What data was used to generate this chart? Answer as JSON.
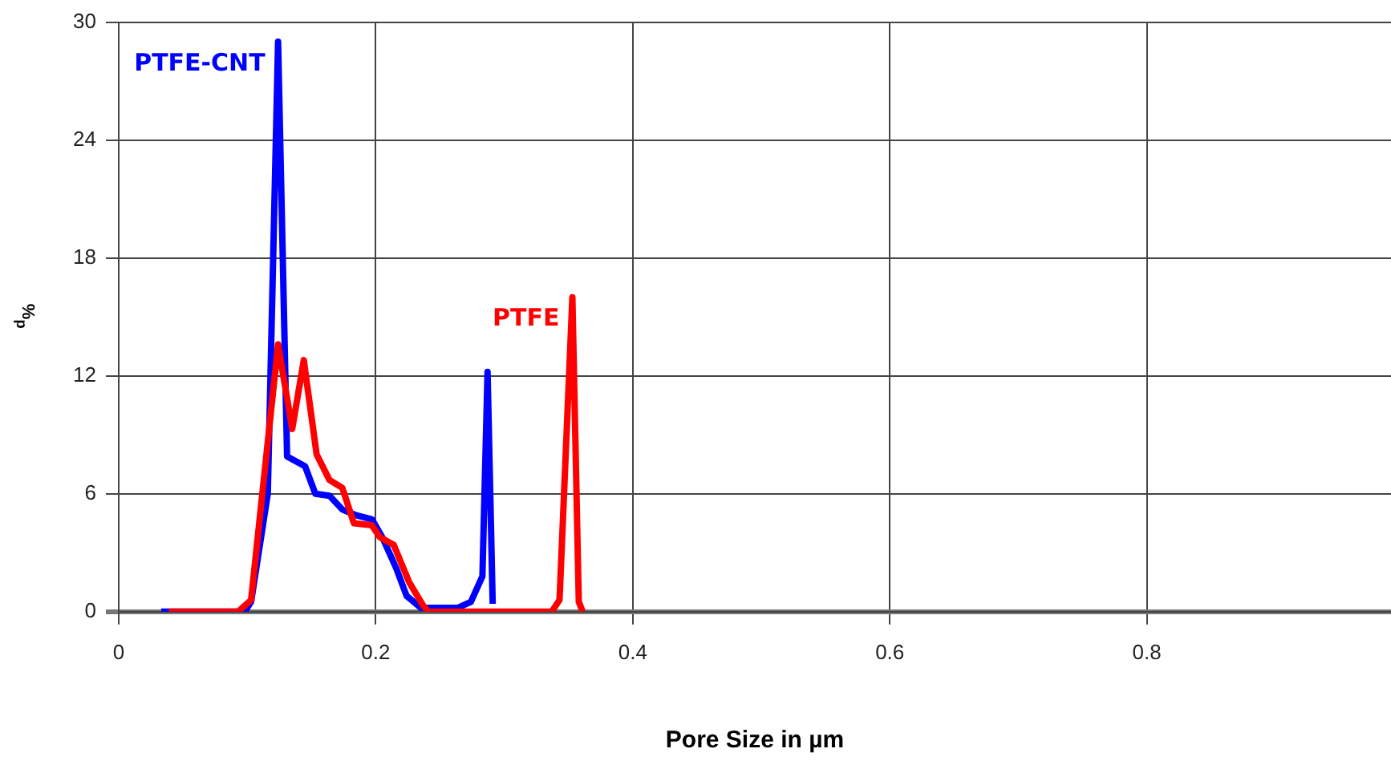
{
  "chart_data": {
    "type": "line",
    "xlabel": "Pore Size in µm",
    "ylabel": "%$_{p}$",
    "xlim": [
      0,
      0.99
    ],
    "xticks": [
      0,
      0.2,
      0.4,
      0.6,
      0.8
    ],
    "ylim": [
      0,
      30
    ],
    "yticks": [
      0,
      6,
      12,
      18,
      24,
      30
    ],
    "grid": true,
    "legend": false,
    "marker": "none",
    "line_style": "solid",
    "series": [
      {
        "name": "PTFE-CNT",
        "color": "#0000ff",
        "x": [
          0.033,
          0.098,
          0.103,
          0.116,
          0.124,
          0.131,
          0.145,
          0.153,
          0.164,
          0.174,
          0.185,
          0.197,
          0.205,
          0.216,
          0.224,
          0.235,
          0.25,
          0.264,
          0.274,
          0.283,
          0.287,
          0.291
        ],
        "values": [
          0,
          0,
          0.5,
          6,
          29,
          7.9,
          7.4,
          6,
          5.9,
          5.2,
          4.9,
          4.7,
          3.8,
          2.2,
          0.8,
          0.2,
          0.2,
          0.2,
          0.5,
          1.8,
          12.2,
          0.4
        ]
      },
      {
        "name": "PTFE",
        "color": "#ff0000",
        "x": [
          0.039,
          0.06,
          0.08,
          0.093,
          0.103,
          0.124,
          0.135,
          0.144,
          0.154,
          0.164,
          0.174,
          0.183,
          0.197,
          0.203,
          0.214,
          0.226,
          0.237,
          0.241,
          0.27,
          0.3,
          0.337,
          0.343,
          0.353,
          0.358,
          0.361
        ],
        "values": [
          0,
          0,
          0,
          0,
          0.6,
          13.6,
          9.3,
          12.8,
          8,
          6.7,
          6.3,
          4.5,
          4.4,
          3.8,
          3.4,
          1.5,
          0.3,
          0,
          0,
          0,
          0,
          0.6,
          16,
          0.5,
          0
        ]
      }
    ]
  }
}
